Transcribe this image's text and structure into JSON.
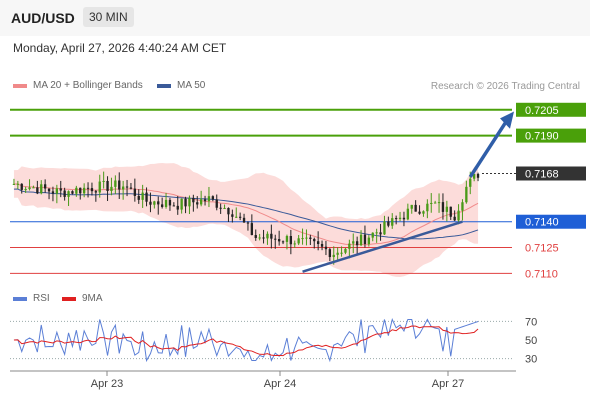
{
  "header": {
    "symbol": "AUD/USD",
    "timeframe": "30 MIN"
  },
  "datetime": "Monday, April 27, 2026 4:40:24 AM CET",
  "legend": {
    "bollinger": {
      "label": "MA 20 + Bollinger Bands",
      "color": "#f08a8a"
    },
    "ma50": {
      "label": "MA 50",
      "color": "#3a5a99"
    },
    "rsi": {
      "label": "RSI",
      "color": "#5b7fd6"
    },
    "rsi_ma": {
      "label": "9MA",
      "color": "#e02020"
    }
  },
  "credit": "Research © 2026 Trading Central",
  "chart_data": [
    {
      "type": "candlestick",
      "title": "AUD/USD 30 MIN",
      "x_tick_labels": [
        "Apr 23",
        "Apr 24",
        "Apr 27"
      ],
      "ylim": [
        0.7105,
        0.7213
      ],
      "last_price": {
        "value": "0.7168",
        "color": "#333333"
      },
      "levels": [
        {
          "label": "0.7205",
          "value": 0.7205,
          "color": "#4aa00a",
          "kind": "target"
        },
        {
          "label": "0.7190",
          "value": 0.719,
          "color": "#4aa00a",
          "kind": "resistance"
        },
        {
          "label": "0.7140",
          "value": 0.714,
          "color": "#1f5fd6",
          "kind": "pivot"
        },
        {
          "label": "0.7125",
          "value": 0.7125,
          "color": "#e04040",
          "kind": "support"
        },
        {
          "label": "0.7110",
          "value": 0.711,
          "color": "#e04040",
          "kind": "support"
        }
      ],
      "colors": {
        "up": "#4a9a18",
        "down": "#222222",
        "trendline": "#3a5a99",
        "arrow": "#2f5ea8"
      }
    },
    {
      "type": "line",
      "title": "RSI",
      "ylim": [
        20,
        80
      ],
      "y_tick_labels": [
        "70",
        "50",
        "30"
      ],
      "series": [
        {
          "name": "RSI",
          "color": "#5b7fd6"
        },
        {
          "name": "9MA",
          "color": "#e02020"
        }
      ]
    }
  ]
}
